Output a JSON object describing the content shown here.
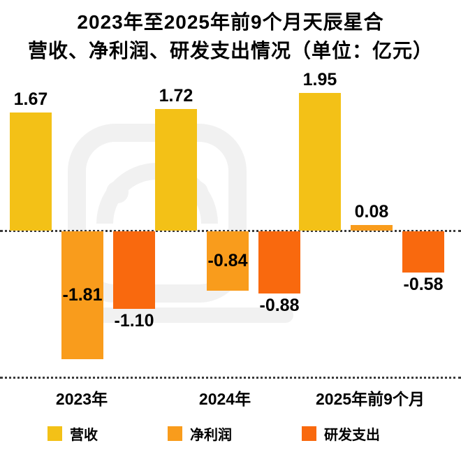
{
  "title": {
    "line1": "2023年至2025年前9个月天辰星合",
    "line2": "营收、净利润、研发支出情况（单位：亿元）"
  },
  "chart_data": {
    "type": "bar",
    "title": "2023年至2025年前9个月天辰星合营收、净利润、研发支出情况",
    "unit": "亿元",
    "categories": [
      "2023年",
      "2024年",
      "2025年前9个月"
    ],
    "series": [
      {
        "name": "营收",
        "color": "#F3C117",
        "values": [
          1.67,
          1.72,
          1.95
        ]
      },
      {
        "name": "净利润",
        "color": "#F99C1C",
        "values": [
          -1.81,
          -0.84,
          0.08
        ]
      },
      {
        "name": "研发支出",
        "color": "#F9690E",
        "values": [
          -1.1,
          -0.88,
          -0.58
        ]
      }
    ],
    "baseline": 0,
    "ylim": [
      -2.0,
      2.0
    ],
    "grid": "off",
    "legend_position": "bottom"
  }
}
